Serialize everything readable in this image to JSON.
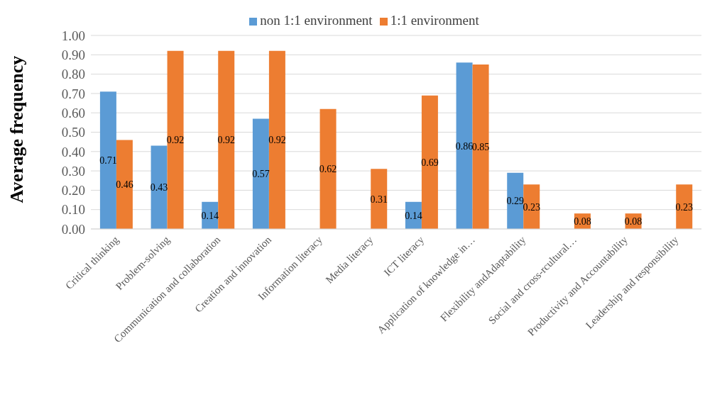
{
  "chart_data": {
    "type": "bar",
    "ylabel": "Average frequency",
    "categories": [
      "Critical thinking",
      "Problem-solving",
      "Communication and collaboration",
      "Creation and innovation",
      "Information literacy",
      "Media literacy",
      "ICT literacy",
      "Application of knowledge in…",
      "Flexibility andAdaptability",
      "Social and cross-rcultural…",
      "Productivity and Accountability",
      "Leadership and responsibility"
    ],
    "series": [
      {
        "name": "non 1:1 environment",
        "color": "#5b9bd5",
        "values": [
          0.71,
          0.43,
          0.14,
          0.57,
          null,
          null,
          0.14,
          0.86,
          0.29,
          null,
          null,
          null
        ],
        "value_labels": [
          "0.71",
          "0.43",
          "0.14",
          "0.57",
          null,
          null,
          "0.14",
          "0.86",
          "0.29",
          null,
          null,
          null
        ]
      },
      {
        "name": "1:1 environment",
        "color": "#ed7d31",
        "values": [
          0.46,
          0.92,
          0.92,
          0.92,
          0.62,
          0.31,
          0.69,
          0.85,
          0.23,
          0.08,
          0.08,
          0.23
        ],
        "value_labels": [
          "0.46",
          "0.92",
          "0.92",
          "0.92",
          "0.62",
          "0.31",
          "0.69",
          "0.85",
          "0.23",
          "0.08",
          "0.08",
          "0.23"
        ]
      }
    ],
    "ylim": [
      0,
      1
    ],
    "yticks": [
      {
        "value": 0,
        "label": "0.00"
      },
      {
        "value": 0.1,
        "label": "0.10"
      },
      {
        "value": 0.2,
        "label": "0.20"
      },
      {
        "value": 0.3,
        "label": "0.30"
      },
      {
        "value": 0.4,
        "label": "0.40"
      },
      {
        "value": 0.5,
        "label": "0.50"
      },
      {
        "value": 0.6,
        "label": "0.60"
      },
      {
        "value": 0.7,
        "label": "0.70"
      },
      {
        "value": 0.8,
        "label": "0.80"
      },
      {
        "value": 0.9,
        "label": "0.90"
      },
      {
        "value": 1,
        "label": "1.00"
      }
    ],
    "grid": "y",
    "legend": "top"
  }
}
